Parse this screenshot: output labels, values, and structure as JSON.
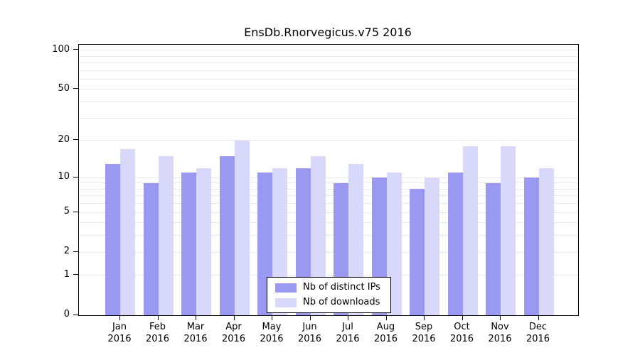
{
  "chart_data": {
    "type": "bar",
    "title": "EnsDb.Rnorvegicus.v75 2016",
    "year": "2016",
    "categories": [
      "Jan",
      "Feb",
      "Mar",
      "Apr",
      "May",
      "Jun",
      "Jul",
      "Aug",
      "Sep",
      "Oct",
      "Nov",
      "Dec"
    ],
    "series": [
      {
        "name": "Nb of distinct IPs",
        "color": "#9999f2",
        "values": [
          13,
          9,
          11,
          15,
          11,
          12,
          9,
          10,
          8,
          11,
          9,
          10
        ]
      },
      {
        "name": "Nb of downloads",
        "color": "#d8d8fa",
        "values": [
          17,
          15,
          12,
          20,
          12,
          15,
          13,
          11,
          10,
          18,
          18,
          12
        ]
      }
    ],
    "y_ticks": [
      0,
      1,
      2,
      5,
      10,
      20,
      50,
      100
    ],
    "grid_values": [
      1,
      2,
      3,
      4,
      5,
      6,
      7,
      8,
      9,
      10,
      20,
      30,
      40,
      50,
      60,
      70,
      80,
      90,
      100
    ],
    "scale": "log10(value+1)",
    "ylim": [
      0,
      110
    ],
    "grid": true,
    "legend_position": "bottom-center"
  }
}
